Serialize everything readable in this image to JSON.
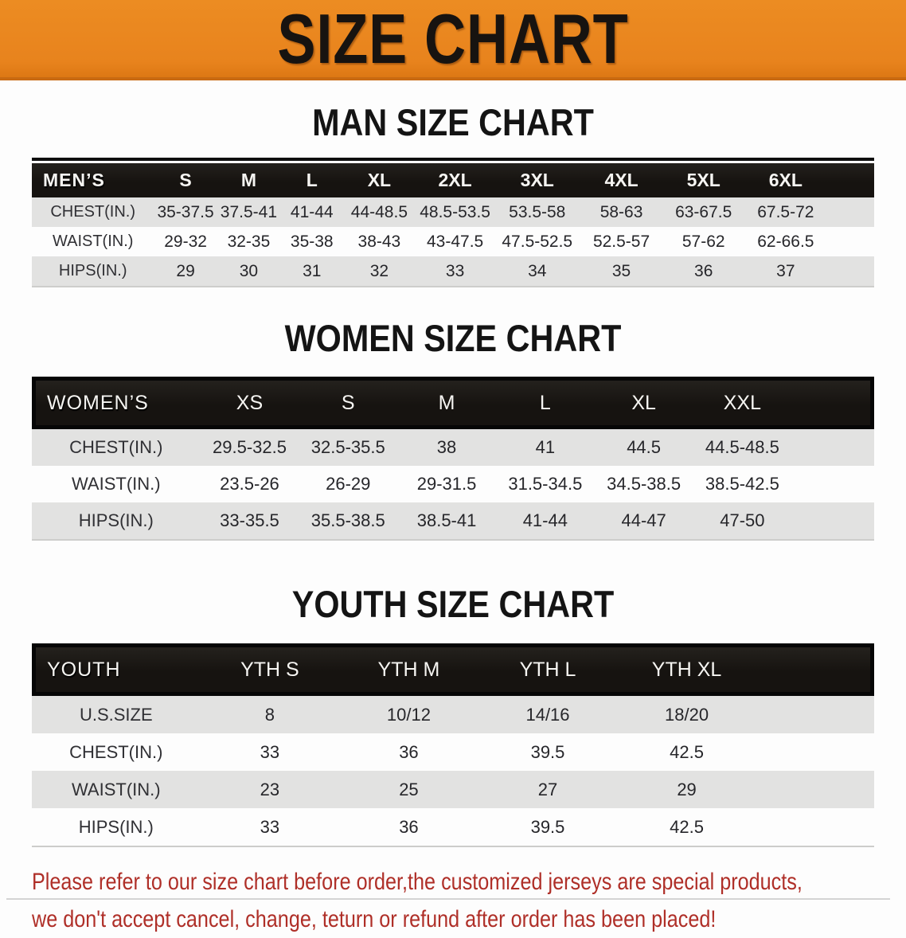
{
  "banner": {
    "title": "SIZE CHART",
    "bg_color": "#E8831D",
    "text_color": "#171310"
  },
  "sections": [
    {
      "heading": "MAN SIZE CHART",
      "table": {
        "header": [
          "MEN’S",
          "S",
          "M",
          "L",
          "XL",
          "2XL",
          "3XL",
          "4XL",
          "5XL",
          "6XL"
        ],
        "rows": [
          [
            "CHEST(IN.)",
            "35-37.5",
            "37.5-41",
            "41-44",
            "44-48.5",
            "48.5-53.5",
            "53.5-58",
            "58-63",
            "63-67.5",
            "67.5-72"
          ],
          [
            "WAIST(IN.)",
            "29-32",
            "32-35",
            "35-38",
            "38-43",
            "43-47.5",
            "47.5-52.5",
            "52.5-57",
            "57-62",
            "62-66.5"
          ],
          [
            "HIPS(IN.)",
            "29",
            "30",
            "31",
            "32",
            "33",
            "34",
            "35",
            "36",
            "37"
          ]
        ]
      }
    },
    {
      "heading": "WOMEN SIZE CHART",
      "table": {
        "header": [
          "WOMEN’S",
          "XS",
          "S",
          "M",
          "L",
          "XL",
          "XXL"
        ],
        "rows": [
          [
            "CHEST(IN.)",
            "29.5-32.5",
            "32.5-35.5",
            "38",
            "41",
            "44.5",
            "44.5-48.5"
          ],
          [
            "WAIST(IN.)",
            "23.5-26",
            "26-29",
            "29-31.5",
            "31.5-34.5",
            "34.5-38.5",
            "38.5-42.5"
          ],
          [
            "HIPS(IN.)",
            "33-35.5",
            "35.5-38.5",
            "38.5-41",
            "41-44",
            "44-47",
            "47-50"
          ]
        ]
      }
    },
    {
      "heading": "YOUTH SIZE CHART",
      "table": {
        "header": [
          "YOUTH",
          "YTH S",
          "YTH M",
          "YTH L",
          "YTH XL"
        ],
        "rows": [
          [
            "U.S.SIZE",
            "8",
            "10/12",
            "14/16",
            "18/20"
          ],
          [
            "CHEST(IN.)",
            "33",
            "36",
            "39.5",
            "42.5"
          ],
          [
            "WAIST(IN.)",
            "23",
            "25",
            "27",
            "29"
          ],
          [
            "HIPS(IN.)",
            "33",
            "36",
            "39.5",
            "42.5"
          ]
        ]
      }
    }
  ],
  "disclaimer": {
    "line1": "Please refer to our size chart before order,the customized jerseys are special products,",
    "line2": "we don't accept cancel, change, teturn or refund after order has been placed!",
    "color": "#AF2F28"
  }
}
